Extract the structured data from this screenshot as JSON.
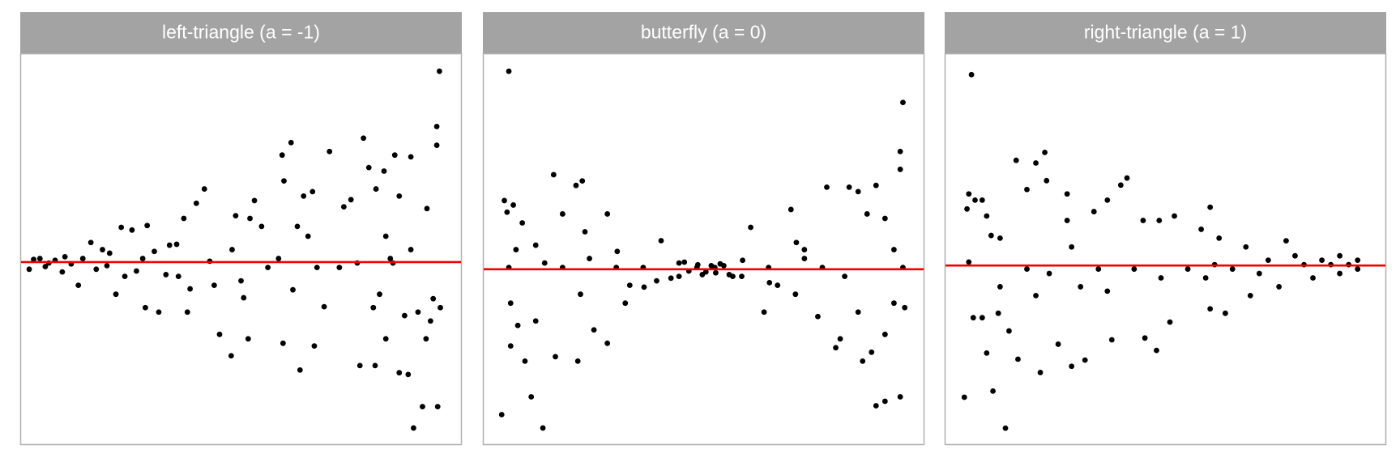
{
  "chart_data": [
    {
      "type": "scatter",
      "title": "left-triangle (a = -1)",
      "color": "#000000",
      "xlim": [
        0,
        494
      ],
      "ylim": [
        -205,
        234
      ],
      "hline": 0,
      "hline_color": "#ee0000",
      "points": [
        [
          469,
          214
        ],
        [
          466,
          152
        ],
        [
          466,
          131
        ],
        [
          450,
          -162
        ],
        [
          440,
          -186
        ],
        [
          467,
          -162
        ],
        [
          470,
          -51
        ],
        [
          462,
          -41
        ],
        [
          459,
          -66
        ],
        [
          454,
          -86
        ],
        [
          437,
          118
        ],
        [
          419,
          120
        ],
        [
          407,
          102
        ],
        [
          398,
          82
        ],
        [
          424,
          74
        ],
        [
          384,
          139
        ],
        [
          390,
          106
        ],
        [
          409,
          29
        ],
        [
          414,
          4
        ],
        [
          402,
          -36
        ],
        [
          395,
          -51
        ],
        [
          409,
          -86
        ],
        [
          397,
          -116
        ],
        [
          380,
          -116
        ],
        [
          424,
          -124
        ],
        [
          434,
          -126
        ],
        [
          437,
          14
        ],
        [
          445,
          -56
        ],
        [
          346,
          124
        ],
        [
          362,
          62
        ],
        [
          327,
          79
        ],
        [
          317,
          74
        ],
        [
          303,
          134
        ],
        [
          293,
          120
        ],
        [
          295,
          91
        ],
        [
          322,
          29
        ],
        [
          332,
          -6
        ],
        [
          313,
          -121
        ],
        [
          329,
          -94
        ],
        [
          294,
          -91
        ],
        [
          289,
          4
        ],
        [
          305,
          -31
        ],
        [
          262,
          69
        ],
        [
          257,
          49
        ],
        [
          241,
          52
        ],
        [
          237,
          14
        ],
        [
          247,
          -21
        ],
        [
          223,
          -81
        ],
        [
          236,
          -105
        ],
        [
          255,
          -86
        ],
        [
          206,
          82
        ],
        [
          197,
          66
        ],
        [
          183,
          49
        ],
        [
          167,
          19
        ],
        [
          163,
          -14
        ],
        [
          142,
          41
        ],
        [
          140,
          -51
        ],
        [
          155,
          -56
        ],
        [
          125,
          36
        ],
        [
          113,
          39
        ],
        [
          107,
          -36
        ],
        [
          92,
          14
        ],
        [
          79,
          22
        ],
        [
          65,
          -26
        ],
        [
          47,
          -11
        ],
        [
          32,
          -1
        ],
        [
          22,
          4
        ],
        [
          39,
          2
        ],
        [
          57,
          -2
        ],
        [
          97,
          -4
        ],
        [
          117,
          -16
        ],
        [
          177,
          -16
        ],
        [
          187,
          -56
        ],
        [
          217,
          -26
        ],
        [
          277,
          -6
        ],
        [
          357,
          -6
        ],
        [
          377,
          -1
        ],
        [
          417,
          -1
        ],
        [
          212,
          1
        ],
        [
          137,
          4
        ],
        [
          10,
          -8
        ],
        [
          15,
          3
        ],
        [
          28,
          -5
        ],
        [
          50,
          6
        ],
        [
          70,
          4
        ],
        [
          85,
          -8
        ],
        [
          100,
          10
        ],
        [
          130,
          -10
        ],
        [
          150,
          12
        ],
        [
          175,
          20
        ],
        [
          190,
          -30
        ],
        [
          250,
          -40
        ],
        [
          270,
          40
        ],
        [
          310,
          40
        ],
        [
          340,
          -50
        ],
        [
          370,
          70
        ],
        [
          430,
          -60
        ],
        [
          455,
          60
        ]
      ]
    },
    {
      "type": "scatter",
      "title": "butterfly (a = 0)",
      "color": "#000000",
      "xlim": [
        0,
        493
      ],
      "ylim": [
        -197,
        242
      ],
      "hline": 0,
      "hline_color": "#ee0000",
      "points": [
        [
          29,
          222
        ],
        [
          469,
          187
        ],
        [
          466,
          132
        ],
        [
          466,
          112
        ],
        [
          21,
          -163
        ],
        [
          67,
          -178
        ],
        [
          54,
          -143
        ],
        [
          439,
          -153
        ],
        [
          449,
          -148
        ],
        [
          466,
          -143
        ],
        [
          24,
          77
        ],
        [
          27,
          64
        ],
        [
          34,
          72
        ],
        [
          44,
          52
        ],
        [
          37,
          22
        ],
        [
          59,
          27
        ],
        [
          79,
          106
        ],
        [
          104,
          94
        ],
        [
          111,
          99
        ],
        [
          89,
          62
        ],
        [
          114,
          42
        ],
        [
          139,
          62
        ],
        [
          29,
          2
        ],
        [
          31,
          -38
        ],
        [
          31,
          -86
        ],
        [
          39,
          -63
        ],
        [
          47,
          -103
        ],
        [
          59,
          -58
        ],
        [
          81,
          -98
        ],
        [
          106,
          -103
        ],
        [
          109,
          -28
        ],
        [
          124,
          -68
        ],
        [
          139,
          -83
        ],
        [
          159,
          -38
        ],
        [
          179,
          2
        ],
        [
          199,
          32
        ],
        [
          219,
          -8
        ],
        [
          239,
          2
        ],
        [
          259,
          2
        ],
        [
          279,
          -8
        ],
        [
          299,
          47
        ],
        [
          319,
          2
        ],
        [
          344,
          67
        ],
        [
          359,
          12
        ],
        [
          384,
          92
        ],
        [
          409,
          92
        ],
        [
          419,
          87
        ],
        [
          429,
          62
        ],
        [
          439,
          94
        ],
        [
          449,
          57
        ],
        [
          459,
          22
        ],
        [
          469,
          2
        ],
        [
          471,
          -43
        ],
        [
          459,
          -38
        ],
        [
          449,
          -73
        ],
        [
          419,
          -48
        ],
        [
          399,
          -78
        ],
        [
          394,
          -88
        ],
        [
          374,
          -53
        ],
        [
          349,
          -28
        ],
        [
          329,
          -18
        ],
        [
          314,
          -48
        ],
        [
          289,
          -8
        ],
        [
          219,
          7
        ],
        [
          249,
          -3
        ],
        [
          269,
          4
        ],
        [
          194,
          -13
        ],
        [
          164,
          -18
        ],
        [
          149,
          2
        ],
        [
          119,
          12
        ],
        [
          89,
          2
        ],
        [
          69,
          7
        ],
        [
          359,
          22
        ],
        [
          379,
          2
        ],
        [
          404,
          -8
        ],
        [
          434,
          -93
        ],
        [
          424,
          -103
        ],
        [
          230,
          -2
        ],
        [
          240,
          5
        ],
        [
          245,
          -6
        ],
        [
          255,
          4
        ],
        [
          260,
          -4
        ],
        [
          265,
          6
        ],
        [
          225,
          8
        ],
        [
          275,
          -6
        ],
        [
          210,
          -10
        ],
        [
          290,
          10
        ],
        [
          180,
          -20
        ],
        [
          320,
          -15
        ],
        [
          150,
          20
        ],
        [
          350,
          30
        ]
      ]
    },
    {
      "type": "scatter",
      "title": "right-triangle (a = 1)",
      "color": "#000000",
      "xlim": [
        0,
        494
      ],
      "ylim": [
        -203,
        240
      ],
      "hline": 0,
      "hline_color": "#ee0000",
      "points": [
        [
          30,
          216
        ],
        [
          22,
          -149
        ],
        [
          68,
          -184
        ],
        [
          54,
          -142
        ],
        [
          80,
          119
        ],
        [
          102,
          116
        ],
        [
          112,
          128
        ],
        [
          27,
          81
        ],
        [
          25,
          64
        ],
        [
          34,
          74
        ],
        [
          42,
          74
        ],
        [
          47,
          56
        ],
        [
          52,
          34
        ],
        [
          62,
          31
        ],
        [
          92,
          86
        ],
        [
          114,
          96
        ],
        [
          137,
          81
        ],
        [
          137,
          51
        ],
        [
          142,
          21
        ],
        [
          167,
          61
        ],
        [
          182,
          74
        ],
        [
          197,
          91
        ],
        [
          204,
          99
        ],
        [
          222,
          51
        ],
        [
          240,
          51
        ],
        [
          257,
          56
        ],
        [
          297,
          66
        ],
        [
          287,
          41
        ],
        [
          307,
          31
        ],
        [
          337,
          21
        ],
        [
          382,
          28
        ],
        [
          442,
          11
        ],
        [
          462,
          6
        ],
        [
          27,
          4
        ],
        [
          32,
          -59
        ],
        [
          42,
          -59
        ],
        [
          47,
          -99
        ],
        [
          60,
          -54
        ],
        [
          72,
          -74
        ],
        [
          82,
          -106
        ],
        [
          107,
          -121
        ],
        [
          127,
          -89
        ],
        [
          142,
          -114
        ],
        [
          157,
          -107
        ],
        [
          187,
          -84
        ],
        [
          224,
          -82
        ],
        [
          237,
          -96
        ],
        [
          252,
          -64
        ],
        [
          297,
          -49
        ],
        [
          314,
          -54
        ],
        [
          342,
          -34
        ],
        [
          374,
          -24
        ],
        [
          412,
          -14
        ],
        [
          442,
          -9
        ],
        [
          462,
          -4
        ],
        [
          102,
          -34
        ],
        [
          117,
          -9
        ],
        [
          152,
          -24
        ],
        [
          182,
          -29
        ],
        [
          212,
          -4
        ],
        [
          242,
          -14
        ],
        [
          272,
          -4
        ],
        [
          302,
          1
        ],
        [
          322,
          -4
        ],
        [
          362,
          6
        ],
        [
          402,
          1
        ],
        [
          432,
          1
        ],
        [
          92,
          -4
        ],
        [
          62,
          -24
        ],
        [
          172,
          -4
        ],
        [
          292,
          -14
        ],
        [
          352,
          -9
        ],
        [
          392,
          11
        ],
        [
          422,
          6
        ],
        [
          452,
          1
        ]
      ]
    }
  ]
}
